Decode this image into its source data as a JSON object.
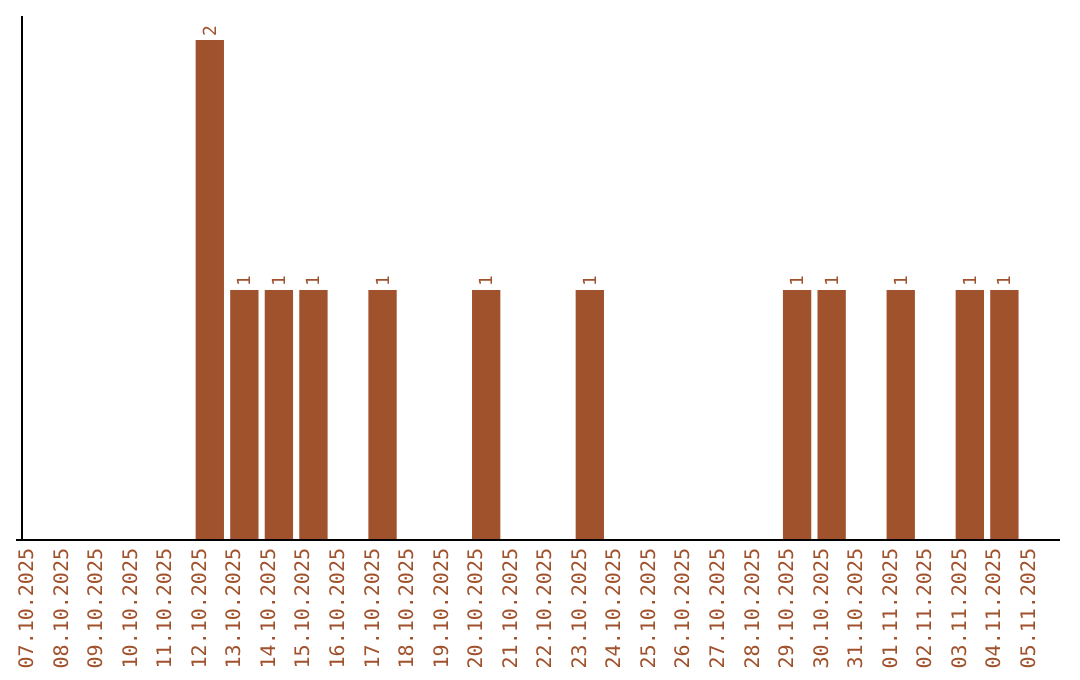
{
  "chart_data": {
    "type": "bar",
    "categories": [
      "07.10.2025",
      "08.10.2025",
      "09.10.2025",
      "10.10.2025",
      "11.10.2025",
      "12.10.2025",
      "13.10.2025",
      "14.10.2025",
      "15.10.2025",
      "16.10.2025",
      "17.10.2025",
      "18.10.2025",
      "19.10.2025",
      "20.10.2025",
      "21.10.2025",
      "22.10.2025",
      "23.10.2025",
      "24.10.2025",
      "25.10.2025",
      "26.10.2025",
      "27.10.2025",
      "28.10.2025",
      "29.10.2025",
      "30.10.2025",
      "31.10.2025",
      "01.11.2025",
      "02.11.2025",
      "03.11.2025",
      "04.11.2025",
      "05.11.2025"
    ],
    "values": [
      0,
      0,
      0,
      0,
      0,
      2,
      1,
      1,
      1,
      0,
      1,
      0,
      0,
      1,
      0,
      0,
      1,
      0,
      0,
      0,
      0,
      0,
      1,
      1,
      0,
      1,
      0,
      1,
      1,
      0
    ],
    "value_labels": [
      null,
      null,
      null,
      null,
      null,
      "2",
      "1",
      "1",
      "1",
      null,
      "1",
      null,
      null,
      "1",
      null,
      null,
      "1",
      null,
      null,
      null,
      null,
      null,
      "1",
      "1",
      null,
      "1",
      null,
      "1",
      "1",
      null
    ],
    "color": "#a0522d",
    "tick_labels": "x"
  }
}
